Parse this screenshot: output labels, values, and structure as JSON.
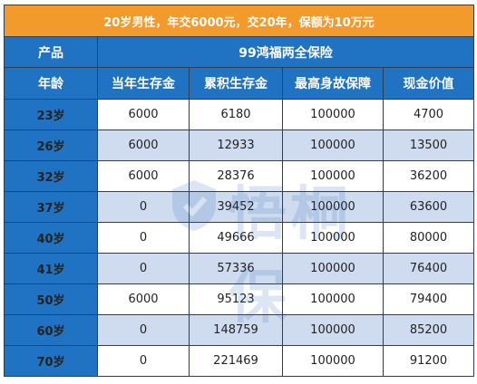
{
  "title": "20岁男性，年交6000元，交20年，保额为10万元",
  "product_label": "产品",
  "product_name": "99鸿福两全保险",
  "headers": [
    "年龄",
    "当年生存金",
    "累积生存金",
    "最高身故保障",
    "现金价值"
  ],
  "rows": [
    {
      "age": "23岁",
      "annual": "6000",
      "cumulative": "6180",
      "death": "100000",
      "cash": "4700"
    },
    {
      "age": "26岁",
      "annual": "6000",
      "cumulative": "12933",
      "death": "100000",
      "cash": "13500"
    },
    {
      "age": "32岁",
      "annual": "6000",
      "cumulative": "28376",
      "death": "100000",
      "cash": "36200"
    },
    {
      "age": "37岁",
      "annual": "0",
      "cumulative": "39452",
      "death": "100000",
      "cash": "63600"
    },
    {
      "age": "40岁",
      "annual": "0",
      "cumulative": "49666",
      "death": "100000",
      "cash": "80000"
    },
    {
      "age": "41岁",
      "annual": "0",
      "cumulative": "57336",
      "death": "100000",
      "cash": "76400"
    },
    {
      "age": "50岁",
      "annual": "6000",
      "cumulative": "95123",
      "death": "100000",
      "cash": "79400"
    },
    {
      "age": "60岁",
      "annual": "0",
      "cumulative": "148759",
      "death": "100000",
      "cash": "85200"
    },
    {
      "age": "70岁",
      "annual": "0",
      "cumulative": "221469",
      "death": "100000",
      "cash": "91200"
    }
  ],
  "watermark": {
    "text": "悟桐保",
    "icon": "shield-logo-icon"
  },
  "colors": {
    "title_bg": "#f39a2c",
    "header_bg": "#1f73c2",
    "stripe": "#cfdcef"
  }
}
